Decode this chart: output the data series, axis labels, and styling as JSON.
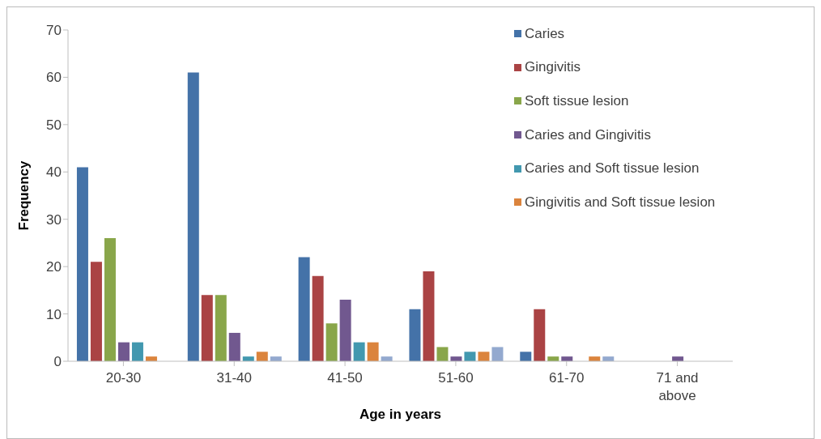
{
  "chart_data": {
    "type": "bar",
    "xlabel": "Age in years",
    "ylabel": "Frequency",
    "categories": [
      "20-30",
      "31-40",
      "41-50",
      "51-60",
      "61-70",
      "71 and above"
    ],
    "series": [
      {
        "name": "Caries",
        "color": "#4472a8",
        "values": [
          41,
          61,
          22,
          11,
          2,
          0
        ]
      },
      {
        "name": "Gingivitis",
        "color": "#aa4344",
        "values": [
          21,
          14,
          18,
          19,
          11,
          0
        ]
      },
      {
        "name": "Soft tissue lesion",
        "color": "#89a64a",
        "values": [
          26,
          14,
          8,
          3,
          1,
          0
        ]
      },
      {
        "name": "Caries and Gingivitis",
        "color": "#71588f",
        "values": [
          4,
          6,
          13,
          1,
          1,
          1
        ]
      },
      {
        "name": "Caries and Soft tissue lesion",
        "color": "#4298af",
        "values": [
          4,
          1,
          4,
          2,
          0,
          0
        ]
      },
      {
        "name": "Gingivitis and Soft tissue lesion",
        "color": "#db843d",
        "values": [
          1,
          2,
          4,
          2,
          1,
          0
        ]
      },
      {
        "color": "#93a9cf",
        "values": [
          0,
          1,
          1,
          3,
          1,
          0
        ]
      }
    ],
    "ylim": [
      0,
      70
    ],
    "yticks": [
      0,
      10,
      20,
      30,
      40,
      50,
      60,
      70
    ],
    "legend": "top right"
  }
}
